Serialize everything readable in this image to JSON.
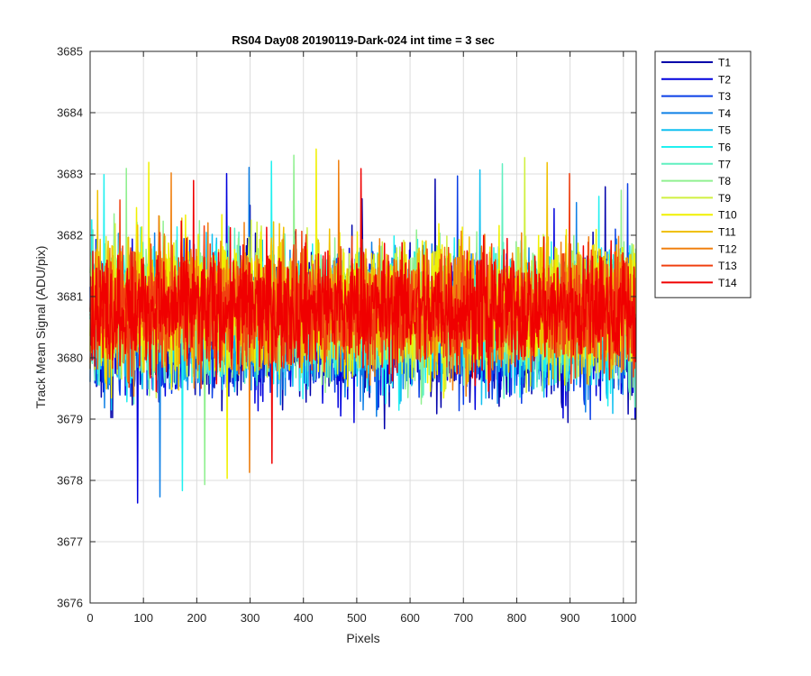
{
  "chart_data": {
    "type": "line",
    "title": "RS04 Day08 20190119-Dark-024 int time = 3 sec",
    "xlabel": "Pixels",
    "ylabel": "Track Mean Signal (ADU/pix)",
    "xlim": [
      0,
      1024
    ],
    "ylim": [
      3676,
      3685
    ],
    "xticks": [
      0,
      100,
      200,
      300,
      400,
      500,
      600,
      700,
      800,
      900,
      1000
    ],
    "yticks": [
      3676,
      3677,
      3678,
      3679,
      3680,
      3681,
      3682,
      3683,
      3684,
      3685
    ],
    "grid": true,
    "legend_position": "outside-top-right",
    "n_points": 1024,
    "series": [
      {
        "name": "T1",
        "color": "#0000aa",
        "mean": 3680.45,
        "spread": 0.95
      },
      {
        "name": "T2",
        "color": "#0000dd",
        "mean": 3680.45,
        "spread": 0.95
      },
      {
        "name": "T3",
        "color": "#0a3fe6",
        "mean": 3680.5,
        "spread": 0.95
      },
      {
        "name": "T4",
        "color": "#0f80e6",
        "mean": 3680.55,
        "spread": 0.95
      },
      {
        "name": "T5",
        "color": "#10c0f0",
        "mean": 3680.6,
        "spread": 0.95
      },
      {
        "name": "T6",
        "color": "#20f0f0",
        "mean": 3680.65,
        "spread": 0.95
      },
      {
        "name": "T7",
        "color": "#60f0c0",
        "mean": 3680.7,
        "spread": 0.95
      },
      {
        "name": "T8",
        "color": "#90f090",
        "mean": 3680.75,
        "spread": 0.95
      },
      {
        "name": "T9",
        "color": "#d0f040",
        "mean": 3680.8,
        "spread": 0.95
      },
      {
        "name": "T10",
        "color": "#f0f000",
        "mean": 3680.85,
        "spread": 0.95
      },
      {
        "name": "T11",
        "color": "#f0c000",
        "mean": 3680.85,
        "spread": 0.9
      },
      {
        "name": "T12",
        "color": "#f08010",
        "mean": 3680.8,
        "spread": 0.9
      },
      {
        "name": "T13",
        "color": "#f04010",
        "mean": 3680.8,
        "spread": 0.85
      },
      {
        "name": "T14",
        "color": "#f00000",
        "mean": 3680.8,
        "spread": 0.85
      }
    ]
  }
}
